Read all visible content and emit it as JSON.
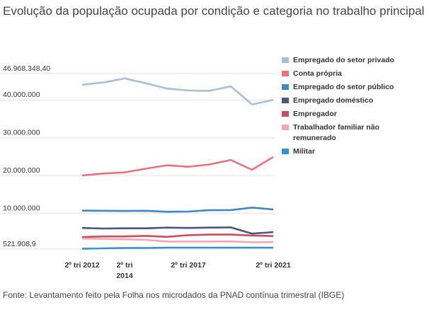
{
  "title": "Evolução da população ocupada por condição e categoria no trabalho principal",
  "source": "Fonte: Levantamento feito pela Folha nos microdados da PNAD contínua trimestral (IBGE)",
  "chart_data": {
    "type": "line",
    "title": "Evolução da população ocupada por condição e categoria no trabalho principal",
    "xlabel": "",
    "ylabel": "",
    "ylim": [
      521908.9,
      46968348.4
    ],
    "y_ticks": [
      46968348.4,
      40000000,
      30000000,
      20000000,
      10000000,
      521908.9
    ],
    "y_tick_labels": [
      "46.968.348,40",
      "40.000.000",
      "30.000.000",
      "20.000.000",
      "10.000.000",
      "521.908,9"
    ],
    "x_ticks": [
      {
        "x": 0,
        "lines": [
          "2º tri 2012"
        ]
      },
      {
        "x": 2,
        "lines": [
          "2º tri",
          "2014"
        ]
      },
      {
        "x": 5,
        "lines": [
          "2º tri 2017"
        ]
      },
      {
        "x": 9,
        "lines": [
          "2º tri 2021"
        ]
      }
    ],
    "x": [
      0,
      1,
      2,
      3,
      4,
      5,
      6,
      7,
      8,
      9
    ],
    "grid": true,
    "legend_position": "right",
    "series": [
      {
        "name": "Empregado do setor privado",
        "color": "#a9bfd6",
        "values": [
          44000000,
          44600000,
          45700000,
          44400000,
          43000000,
          42500000,
          42400000,
          43600000,
          38800000,
          40000000
        ]
      },
      {
        "name": "Conta própria",
        "color": "#e8737f",
        "values": [
          20000000,
          20500000,
          20800000,
          21800000,
          22700000,
          22300000,
          22900000,
          24100000,
          21500000,
          24900000
        ]
      },
      {
        "name": "Empregado do setor público",
        "color": "#3f86c5",
        "values": [
          10700000,
          10650000,
          10600000,
          10650000,
          10400000,
          10450000,
          10800000,
          10850000,
          11500000,
          11000000
        ]
      },
      {
        "name": "Empregado doméstico",
        "color": "#4a5580",
        "values": [
          6100000,
          5950000,
          6000000,
          6000000,
          6200000,
          6100000,
          6200000,
          6250000,
          4600000,
          5000000
        ]
      },
      {
        "name": "Empregador",
        "color": "#c94e62",
        "values": [
          3700000,
          3850000,
          3850000,
          4000000,
          3750000,
          4200000,
          4350000,
          4350000,
          4100000,
          3950000
        ]
      },
      {
        "name": "Trabalhador familiar não remunerado",
        "color": "#f2a7b3",
        "values": [
          3300000,
          3200000,
          3100000,
          2950000,
          2500000,
          2500000,
          2500000,
          2550000,
          2300000,
          2400000
        ]
      },
      {
        "name": "Militar",
        "color": "#3a8fd1",
        "values": [
          600000,
          700000,
          800000,
          800000,
          900000,
          900000,
          900000,
          900000,
          900000,
          900000
        ]
      }
    ]
  }
}
